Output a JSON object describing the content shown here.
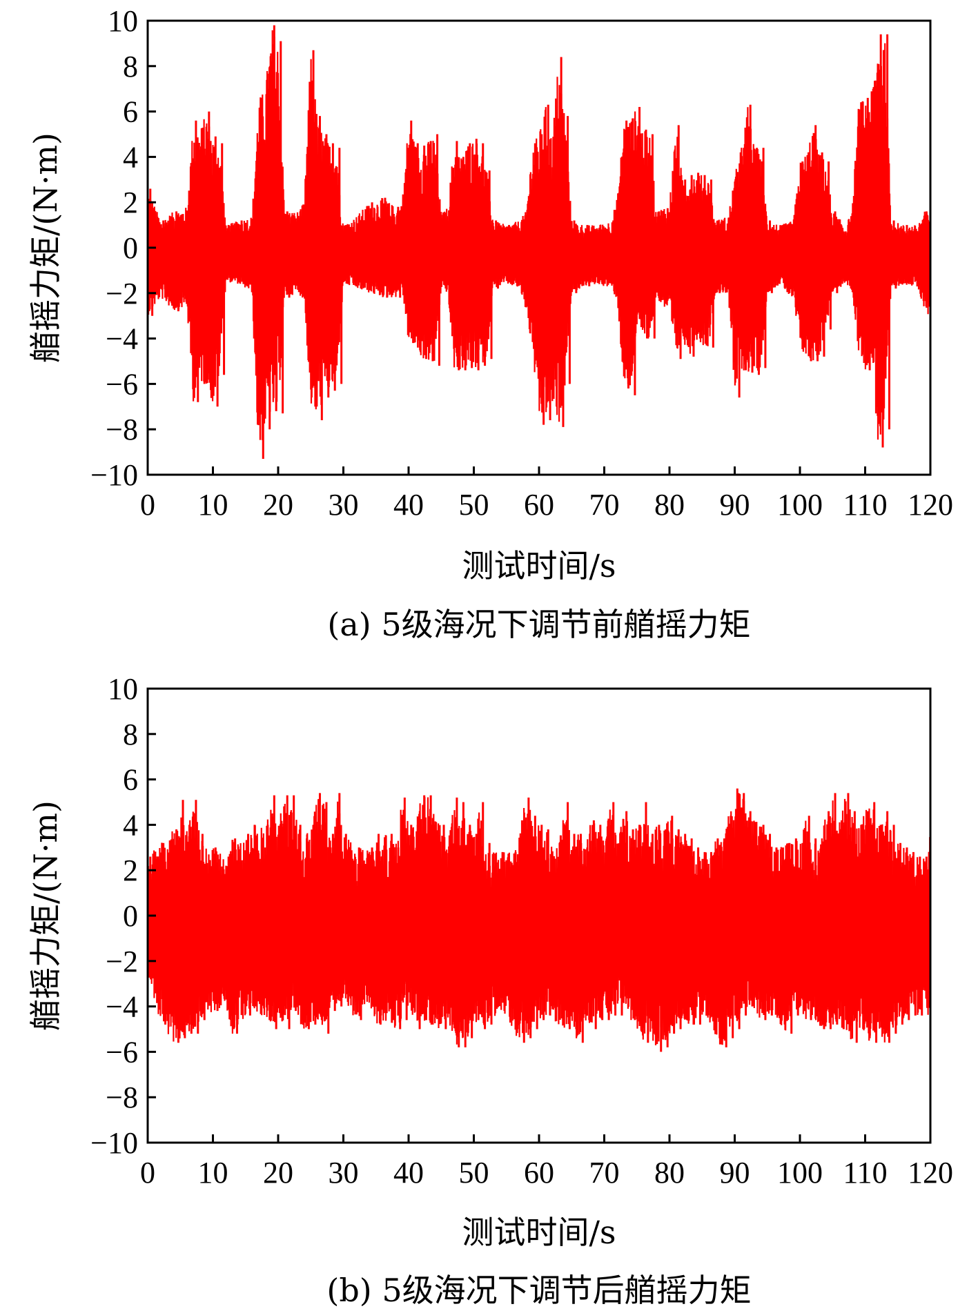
{
  "chart_data": [
    {
      "type": "line",
      "caption": "(a) 5级海况下调节前艏摇力矩",
      "xlabel": "测试时间/s",
      "ylabel": "艏摇力矩/(N·m)",
      "xlim": [
        0,
        120
      ],
      "ylim": [
        -10,
        10
      ],
      "xticks": [
        "0",
        "10",
        "20",
        "30",
        "40",
        "50",
        "60",
        "70",
        "80",
        "90",
        "100",
        "110",
        "120"
      ],
      "yticks": [
        "10",
        "8",
        "6",
        "4",
        "2",
        "0",
        "−2",
        "−4",
        "−6",
        "−8",
        "−10"
      ],
      "series_color": "#ff0000",
      "baseline": -0.5,
      "envelope": [
        [
          0,
          2.6,
          -3.0
        ],
        [
          2,
          1.2,
          -2.2
        ],
        [
          4,
          1.6,
          -2.8
        ],
        [
          6,
          1.8,
          -2.6
        ],
        [
          7,
          5.6,
          -6.8
        ],
        [
          8,
          5.2,
          -6.0
        ],
        [
          9,
          6.0,
          -6.0
        ],
        [
          10,
          4.9,
          -7.0
        ],
        [
          11,
          4.6,
          -5.6
        ],
        [
          12,
          1.0,
          -1.5
        ],
        [
          14,
          1.2,
          -1.6
        ],
        [
          16,
          1.4,
          -2.0
        ],
        [
          17,
          6.6,
          -9.3
        ],
        [
          18,
          7.0,
          -8.0
        ],
        [
          19,
          9.8,
          -7.2
        ],
        [
          20,
          9.1,
          -7.3
        ],
        [
          21,
          1.6,
          -2.2
        ],
        [
          23,
          1.6,
          -2.0
        ],
        [
          24,
          2.0,
          -2.3
        ],
        [
          25,
          8.7,
          -7.0
        ],
        [
          26,
          5.8,
          -7.6
        ],
        [
          27,
          5.0,
          -6.6
        ],
        [
          28,
          4.6,
          -6.3
        ],
        [
          29,
          4.4,
          -6.0
        ],
        [
          30,
          1.0,
          -1.6
        ],
        [
          32,
          1.4,
          -1.8
        ],
        [
          34,
          2.0,
          -2.0
        ],
        [
          36,
          2.2,
          -2.2
        ],
        [
          38,
          1.8,
          -2.2
        ],
        [
          39,
          2.0,
          -1.8
        ],
        [
          40,
          5.6,
          -4.2
        ],
        [
          41,
          4.6,
          -4.4
        ],
        [
          42,
          4.5,
          -4.9
        ],
        [
          43,
          4.7,
          -5.0
        ],
        [
          44,
          5.0,
          -5.2
        ],
        [
          45,
          1.5,
          -1.8
        ],
        [
          46,
          1.8,
          -2.0
        ],
        [
          47,
          4.7,
          -5.4
        ],
        [
          48,
          4.0,
          -5.4
        ],
        [
          49,
          4.6,
          -5.3
        ],
        [
          50,
          4.8,
          -5.4
        ],
        [
          51,
          4.6,
          -5.2
        ],
        [
          52,
          3.4,
          -4.9
        ],
        [
          53,
          1.2,
          -1.8
        ],
        [
          55,
          1.0,
          -1.6
        ],
        [
          57,
          1.2,
          -1.8
        ],
        [
          58,
          1.6,
          -2.8
        ],
        [
          59,
          4.6,
          -4.6
        ],
        [
          60,
          5.0,
          -7.8
        ],
        [
          61,
          6.3,
          -7.6
        ],
        [
          62,
          4.8,
          -7.0
        ],
        [
          63,
          8.4,
          -7.9
        ],
        [
          64,
          5.8,
          -6.0
        ],
        [
          65,
          1.2,
          -2.0
        ],
        [
          67,
          1.0,
          -1.7
        ],
        [
          69,
          1.0,
          -1.6
        ],
        [
          71,
          1.2,
          -1.8
        ],
        [
          72,
          2.2,
          -2.3
        ],
        [
          73,
          5.6,
          -6.2
        ],
        [
          74,
          5.7,
          -6.5
        ],
        [
          75,
          6.2,
          -3.5
        ],
        [
          76,
          5.2,
          -4.0
        ],
        [
          77,
          5.0,
          -4.0
        ],
        [
          78,
          1.6,
          -2.2
        ],
        [
          80,
          2.0,
          -3.0
        ],
        [
          81,
          5.4,
          -4.9
        ],
        [
          82,
          3.0,
          -4.0
        ],
        [
          83,
          3.2,
          -4.8
        ],
        [
          84,
          3.3,
          -4.0
        ],
        [
          85,
          3.2,
          -4.3
        ],
        [
          86,
          3.0,
          -4.4
        ],
        [
          87,
          1.2,
          -2.0
        ],
        [
          89,
          1.4,
          -2.0
        ],
        [
          90,
          3.2,
          -6.6
        ],
        [
          91,
          4.4,
          -5.4
        ],
        [
          92,
          6.3,
          -5.5
        ],
        [
          93,
          4.4,
          -5.6
        ],
        [
          94,
          4.4,
          -5.3
        ],
        [
          95,
          1.2,
          -2.0
        ],
        [
          97,
          1.0,
          -1.6
        ],
        [
          99,
          1.2,
          -2.4
        ],
        [
          100,
          3.8,
          -4.4
        ],
        [
          101,
          4.2,
          -5.0
        ],
        [
          102,
          5.4,
          -5.0
        ],
        [
          103,
          4.2,
          -4.8
        ],
        [
          104,
          3.8,
          -3.6
        ],
        [
          105,
          1.6,
          -2.0
        ],
        [
          107,
          1.0,
          -1.6
        ],
        [
          108,
          1.6,
          -1.9
        ],
        [
          109,
          6.4,
          -4.6
        ],
        [
          110,
          6.6,
          -5.4
        ],
        [
          111,
          6.9,
          -4.8
        ],
        [
          112,
          9.4,
          -8.8
        ],
        [
          113,
          9.4,
          -8.0
        ],
        [
          114,
          1.2,
          -1.8
        ],
        [
          116,
          1.0,
          -1.6
        ],
        [
          118,
          1.0,
          -1.8
        ],
        [
          119,
          1.6,
          -2.6
        ],
        [
          120,
          1.6,
          -3.2
        ]
      ]
    },
    {
      "type": "line",
      "caption": "(b) 5级海况下调节后艏摇力矩",
      "xlabel": "测试时间/s",
      "ylabel": "艏摇力矩/(N·m)",
      "xlim": [
        0,
        120
      ],
      "ylim": [
        -10,
        10
      ],
      "xticks": [
        "0",
        "10",
        "20",
        "30",
        "40",
        "50",
        "60",
        "70",
        "80",
        "90",
        "100",
        "110",
        "120"
      ],
      "yticks": [
        "10",
        "8",
        "6",
        "4",
        "2",
        "0",
        "−2",
        "−4",
        "−6",
        "−8",
        "−10"
      ],
      "series_color": "#ff0000",
      "baseline": -1.0,
      "envelope": [
        [
          0,
          2.6,
          -2.6
        ],
        [
          2,
          3.2,
          -4.8
        ],
        [
          4,
          3.8,
          -5.6
        ],
        [
          5,
          5.1,
          -5.4
        ],
        [
          6,
          4.0,
          -5.2
        ],
        [
          7,
          5.1,
          -5.2
        ],
        [
          8,
          3.6,
          -4.6
        ],
        [
          10,
          3.0,
          -4.2
        ],
        [
          12,
          2.6,
          -4.0
        ],
        [
          13,
          3.4,
          -5.2
        ],
        [
          15,
          3.6,
          -4.4
        ],
        [
          16,
          4.0,
          -4.0
        ],
        [
          18,
          4.0,
          -4.6
        ],
        [
          19,
          5.3,
          -5.0
        ],
        [
          20,
          4.0,
          -4.4
        ],
        [
          21,
          5.3,
          -5.0
        ],
        [
          22,
          5.3,
          -4.2
        ],
        [
          23,
          4.0,
          -4.6
        ],
        [
          24,
          3.4,
          -5.0
        ],
        [
          25,
          4.0,
          -4.8
        ],
        [
          26,
          5.4,
          -4.6
        ],
        [
          27,
          5.0,
          -5.2
        ],
        [
          28,
          3.6,
          -4.2
        ],
        [
          29,
          5.4,
          -4.0
        ],
        [
          30,
          3.6,
          -3.8
        ],
        [
          32,
          3.0,
          -4.6
        ],
        [
          34,
          3.0,
          -4.0
        ],
        [
          35,
          3.6,
          -4.8
        ],
        [
          37,
          3.6,
          -4.6
        ],
        [
          38,
          3.0,
          -5.0
        ],
        [
          39,
          5.2,
          -4.6
        ],
        [
          40,
          4.0,
          -4.0
        ],
        [
          41,
          4.0,
          -5.0
        ],
        [
          42,
          5.3,
          -4.6
        ],
        [
          43,
          5.3,
          -4.8
        ],
        [
          45,
          4.0,
          -5.0
        ],
        [
          46,
          3.4,
          -4.8
        ],
        [
          47,
          5.2,
          -5.8
        ],
        [
          48,
          5.0,
          -5.8
        ],
        [
          49,
          4.0,
          -5.4
        ],
        [
          50,
          3.6,
          -4.6
        ],
        [
          51,
          5.0,
          -5.0
        ],
        [
          52,
          3.2,
          -4.8
        ],
        [
          54,
          2.8,
          -4.2
        ],
        [
          56,
          2.8,
          -5.0
        ],
        [
          57,
          4.2,
          -5.6
        ],
        [
          58,
          5.2,
          -5.4
        ],
        [
          59,
          4.4,
          -5.0
        ],
        [
          60,
          4.0,
          -4.6
        ],
        [
          61,
          3.8,
          -4.4
        ],
        [
          63,
          3.0,
          -4.8
        ],
        [
          64,
          5.0,
          -5.0
        ],
        [
          65,
          3.6,
          -5.0
        ],
        [
          66,
          3.6,
          -5.6
        ],
        [
          67,
          3.0,
          -4.6
        ],
        [
          68,
          4.2,
          -5.0
        ],
        [
          69,
          4.0,
          -4.6
        ],
        [
          70,
          3.4,
          -4.6
        ],
        [
          71,
          5.0,
          -4.4
        ],
        [
          72,
          3.2,
          -4.4
        ],
        [
          73,
          4.6,
          -4.0
        ],
        [
          74,
          3.8,
          -4.6
        ],
        [
          75,
          4.0,
          -5.0
        ],
        [
          76,
          5.0,
          -5.6
        ],
        [
          77,
          3.6,
          -5.2
        ],
        [
          78,
          4.0,
          -6.0
        ],
        [
          79,
          3.6,
          -5.8
        ],
        [
          80,
          4.4,
          -5.2
        ],
        [
          81,
          3.8,
          -5.0
        ],
        [
          82,
          3.6,
          -4.6
        ],
        [
          83,
          3.4,
          -4.8
        ],
        [
          84,
          3.0,
          -4.8
        ],
        [
          85,
          2.8,
          -4.4
        ],
        [
          86,
          2.8,
          -4.6
        ],
        [
          87,
          3.4,
          -5.4
        ],
        [
          88,
          3.4,
          -5.8
        ],
        [
          89,
          4.4,
          -5.4
        ],
        [
          90,
          5.6,
          -5.0
        ],
        [
          91,
          5.4,
          -4.4
        ],
        [
          92,
          4.6,
          -4.0
        ],
        [
          94,
          4.0,
          -4.6
        ],
        [
          95,
          3.6,
          -4.4
        ],
        [
          96,
          3.0,
          -4.2
        ],
        [
          97,
          3.0,
          -4.8
        ],
        [
          98,
          3.2,
          -5.2
        ],
        [
          99,
          3.4,
          -4.4
        ],
        [
          100,
          3.2,
          -4.2
        ],
        [
          101,
          4.4,
          -4.6
        ],
        [
          102,
          3.4,
          -4.4
        ],
        [
          103,
          3.0,
          -5.0
        ],
        [
          104,
          4.6,
          -5.0
        ],
        [
          105,
          5.4,
          -4.8
        ],
        [
          106,
          4.2,
          -5.0
        ],
        [
          107,
          5.4,
          -5.0
        ],
        [
          108,
          4.6,
          -5.6
        ],
        [
          109,
          4.0,
          -5.0
        ],
        [
          110,
          4.6,
          -5.4
        ],
        [
          111,
          5.0,
          -5.6
        ],
        [
          112,
          4.0,
          -5.2
        ],
        [
          113,
          4.6,
          -5.6
        ],
        [
          114,
          4.0,
          -5.2
        ],
        [
          115,
          3.2,
          -4.8
        ],
        [
          116,
          3.0,
          -4.6
        ],
        [
          117,
          2.8,
          -4.4
        ],
        [
          118,
          2.6,
          -4.4
        ],
        [
          119,
          2.6,
          -3.8
        ],
        [
          120,
          3.6,
          -4.8
        ]
      ]
    }
  ]
}
